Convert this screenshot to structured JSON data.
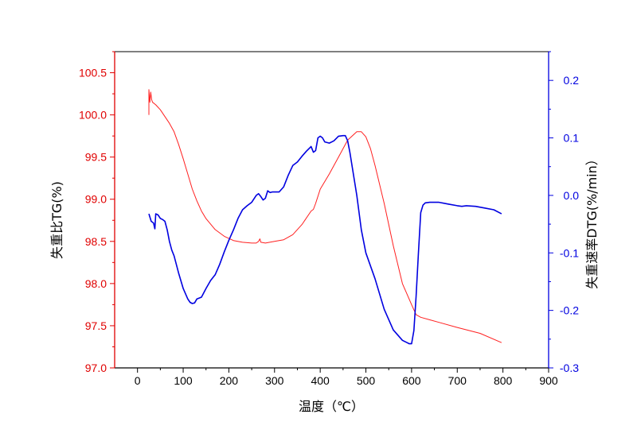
{
  "chart_data": {
    "type": "line",
    "xlabel": "温度（℃）",
    "ylabel_left": "失重比TG(%)",
    "ylabel_right": "失重速率DTG(%/min）",
    "xlim": [
      -50,
      900
    ],
    "ylim_left": [
      97.0,
      100.75
    ],
    "ylim_right": [
      -0.3,
      0.25
    ],
    "x_ticks": [
      0,
      100,
      200,
      300,
      400,
      500,
      600,
      700,
      800,
      900
    ],
    "x_tick_labels": [
      "0",
      "100",
      "200",
      "300",
      "400",
      "500",
      "600",
      "700",
      "800",
      "900"
    ],
    "y_left_ticks": [
      97.0,
      97.5,
      98.0,
      98.5,
      99.0,
      99.5,
      100.0,
      100.5
    ],
    "y_left_tick_labels": [
      "97.0",
      "97.5",
      "98.0",
      "98.5",
      "99.0",
      "99.5",
      "100.0",
      "100.5"
    ],
    "y_right_ticks": [
      -0.3,
      -0.2,
      -0.1,
      0.0,
      0.1,
      0.2
    ],
    "y_right_tick_labels": [
      "-0.3",
      "-0.2",
      "-0.1",
      "0.0",
      "0.1",
      "0.2"
    ],
    "grid": false,
    "colors": {
      "tg": "#ff2020",
      "dtg": "#0000e0",
      "left_axis": "#e00000",
      "right_axis": "#0000e0",
      "frame": "#000000"
    },
    "series": [
      {
        "axis": "left",
        "color": "#ff2020",
        "x": [
          25,
          25,
          27,
          29,
          31,
          33,
          40,
          50,
          60,
          70,
          80,
          90,
          100,
          110,
          120,
          130,
          140,
          150,
          170,
          190,
          210,
          230,
          250,
          260,
          265,
          268,
          270,
          280,
          300,
          320,
          340,
          360,
          380,
          385,
          390,
          400,
          420,
          440,
          460,
          480,
          490,
          500,
          510,
          520,
          540,
          560,
          580,
          600,
          610,
          620,
          640,
          660,
          700,
          750,
          797
        ],
        "values": [
          100.0,
          100.3,
          100.15,
          100.27,
          100.18,
          100.15,
          100.12,
          100.06,
          99.98,
          99.9,
          99.8,
          99.65,
          99.48,
          99.3,
          99.12,
          98.98,
          98.86,
          98.77,
          98.64,
          98.56,
          98.51,
          98.49,
          98.48,
          98.48,
          98.5,
          98.53,
          98.49,
          98.48,
          98.5,
          98.52,
          98.58,
          98.7,
          98.86,
          98.88,
          98.95,
          99.12,
          99.3,
          99.5,
          99.7,
          99.8,
          99.8,
          99.74,
          99.6,
          99.4,
          98.95,
          98.45,
          98.0,
          97.75,
          97.63,
          97.6,
          97.57,
          97.54,
          97.48,
          97.41,
          97.3
        ]
      },
      {
        "axis": "right",
        "color": "#0000e0",
        "x": [
          25,
          30,
          35,
          38,
          40,
          45,
          50,
          55,
          60,
          65,
          70,
          75,
          80,
          90,
          100,
          110,
          115,
          120,
          125,
          130,
          140,
          150,
          160,
          170,
          180,
          190,
          200,
          210,
          220,
          230,
          240,
          250,
          260,
          265,
          270,
          275,
          280,
          285,
          290,
          295,
          300,
          310,
          320,
          330,
          340,
          350,
          360,
          370,
          380,
          385,
          390,
          395,
          400,
          405,
          410,
          420,
          430,
          440,
          450,
          455,
          460,
          465,
          470,
          480,
          490,
          500,
          520,
          540,
          560,
          580,
          590,
          595,
          600,
          605,
          610,
          615,
          620,
          625,
          630,
          640,
          650,
          660,
          680,
          700,
          710,
          720,
          740,
          760,
          780,
          797
        ],
        "values": [
          -0.032,
          -0.045,
          -0.048,
          -0.058,
          -0.032,
          -0.034,
          -0.04,
          -0.042,
          -0.045,
          -0.06,
          -0.08,
          -0.095,
          -0.105,
          -0.135,
          -0.162,
          -0.18,
          -0.186,
          -0.188,
          -0.187,
          -0.18,
          -0.177,
          -0.162,
          -0.148,
          -0.138,
          -0.12,
          -0.098,
          -0.078,
          -0.06,
          -0.04,
          -0.025,
          -0.018,
          -0.012,
          0.0,
          0.003,
          -0.002,
          -0.008,
          -0.005,
          0.008,
          0.005,
          0.006,
          0.006,
          0.006,
          0.015,
          0.035,
          0.052,
          0.058,
          0.068,
          0.077,
          0.085,
          0.075,
          0.078,
          0.1,
          0.103,
          0.1,
          0.093,
          0.091,
          0.095,
          0.103,
          0.104,
          0.104,
          0.095,
          0.075,
          0.05,
          -0.0,
          -0.06,
          -0.1,
          -0.145,
          -0.198,
          -0.234,
          -0.252,
          -0.256,
          -0.258,
          -0.258,
          -0.235,
          -0.175,
          -0.1,
          -0.03,
          -0.017,
          -0.013,
          -0.012,
          -0.012,
          -0.012,
          -0.015,
          -0.018,
          -0.019,
          -0.018,
          -0.019,
          -0.022,
          -0.025,
          -0.032
        ]
      }
    ]
  }
}
